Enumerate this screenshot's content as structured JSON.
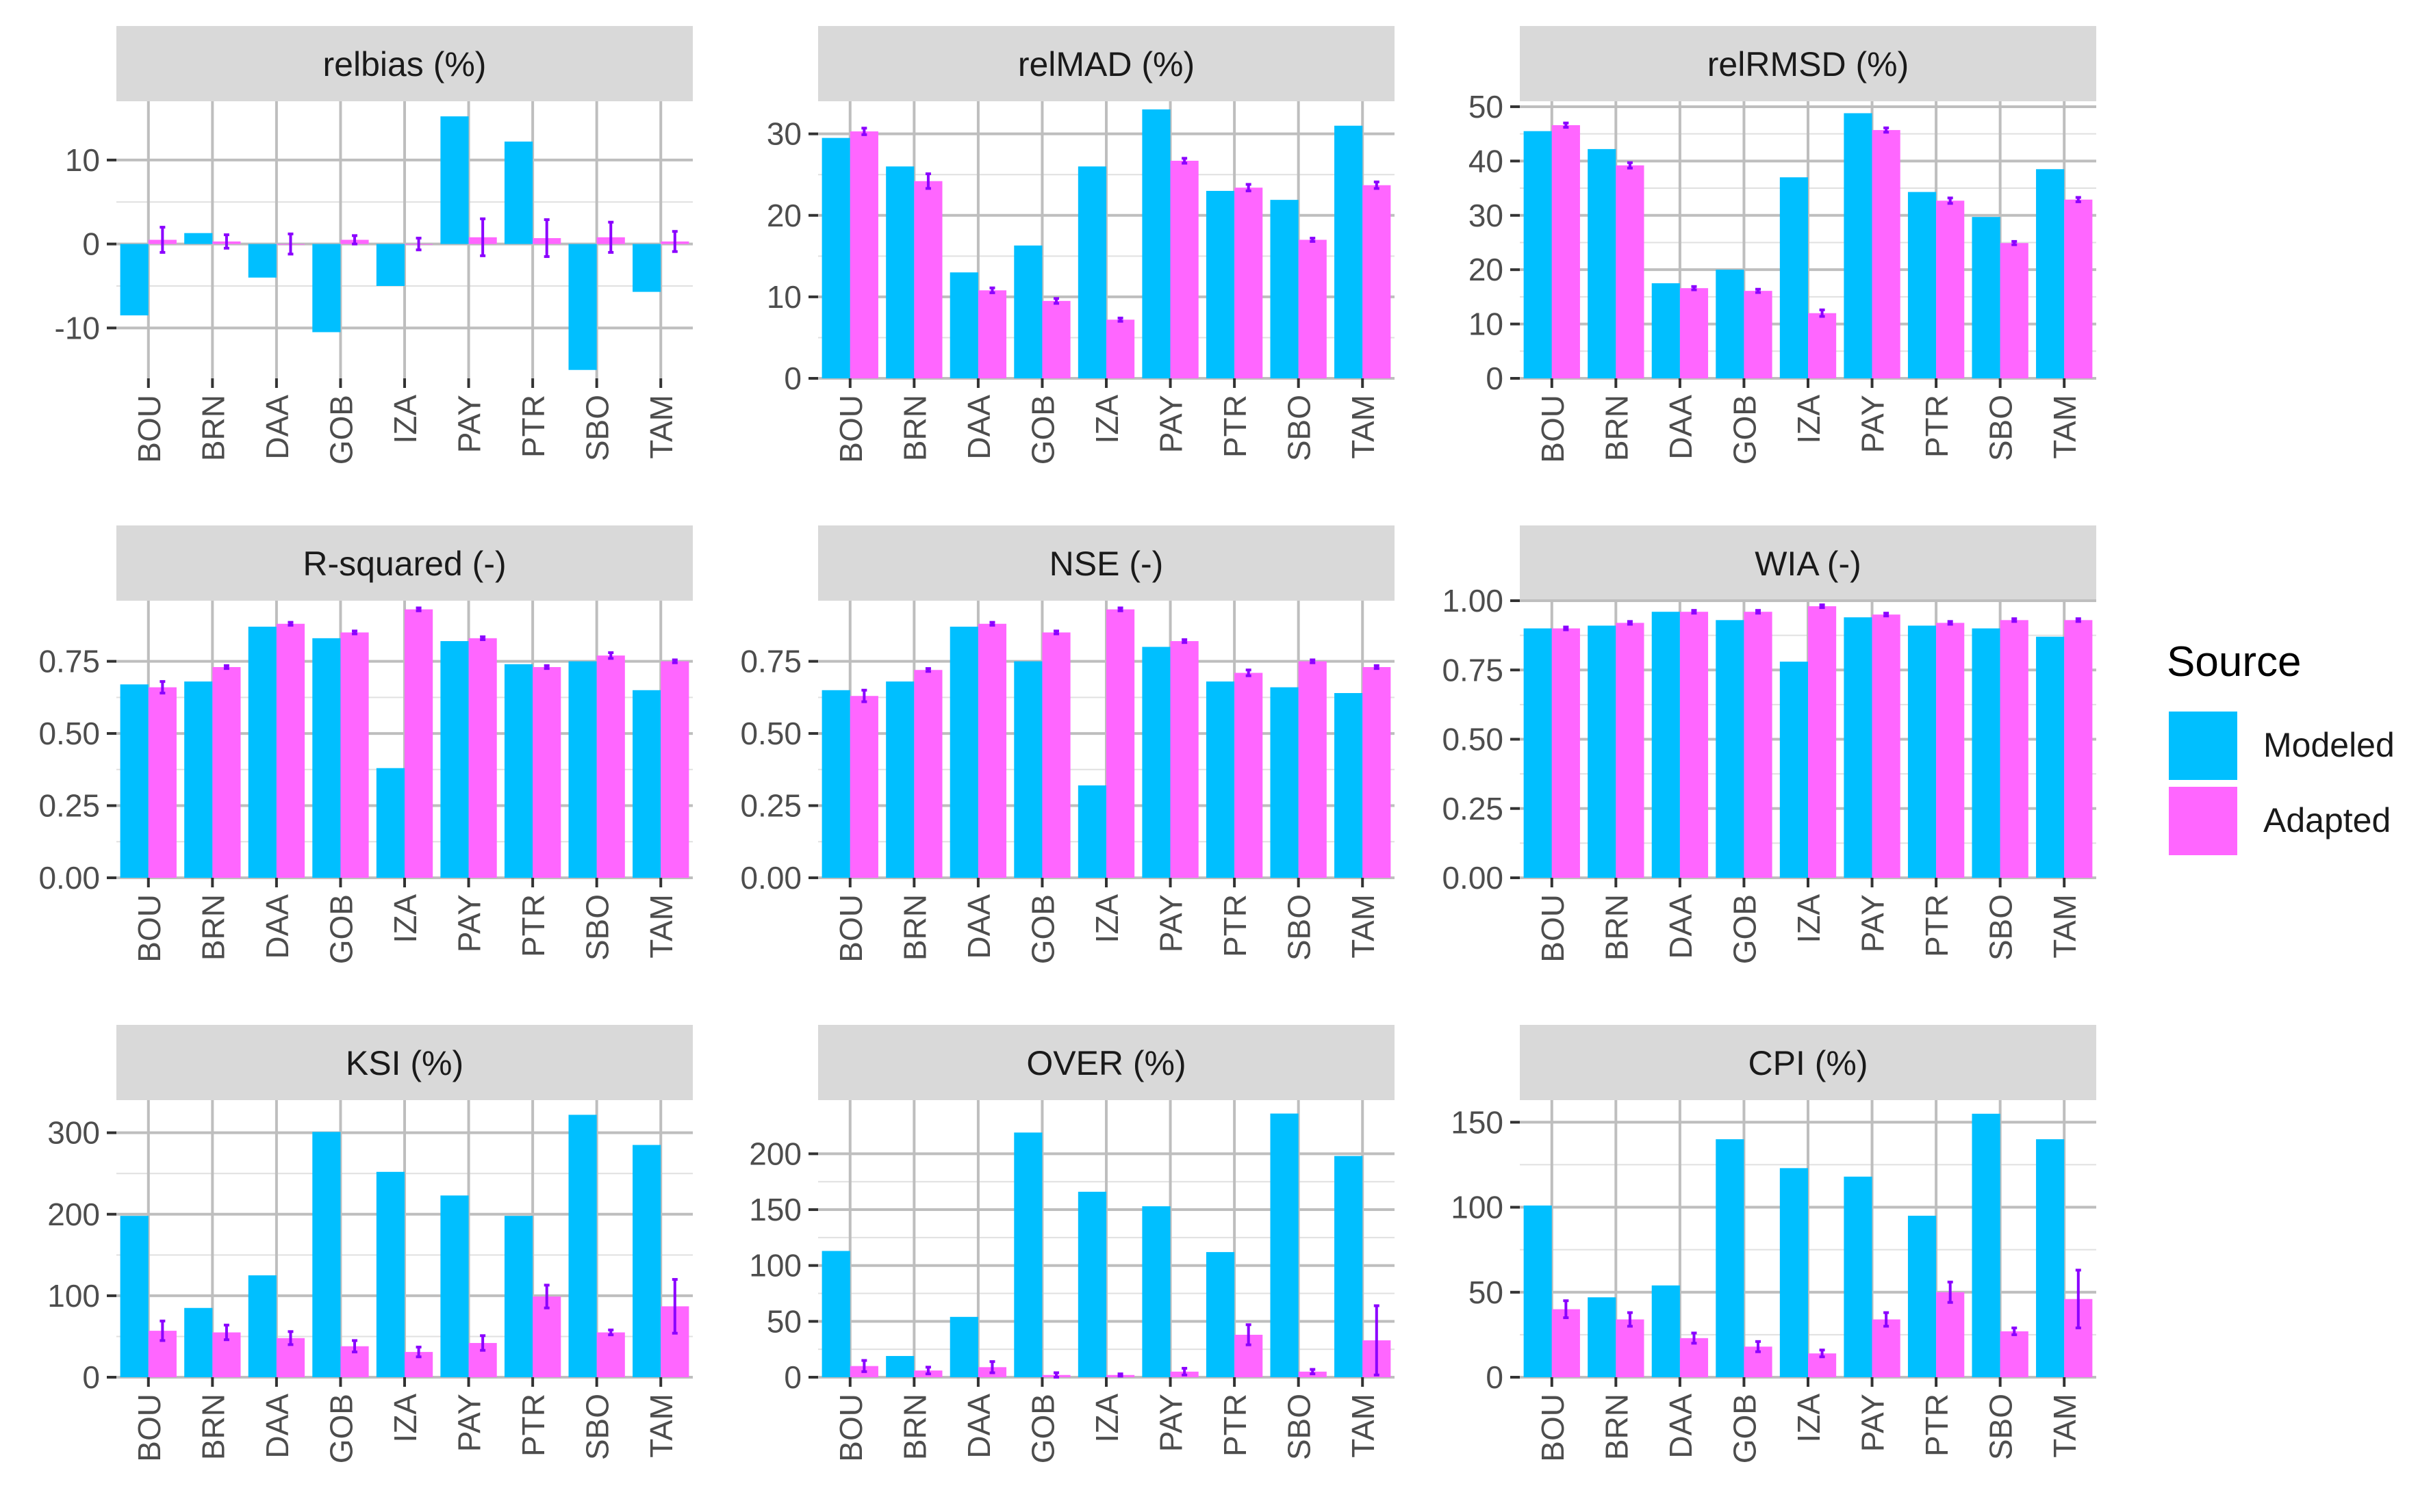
{
  "legend": {
    "title": "Source",
    "items": [
      {
        "label": "Modeled",
        "color": "#00BFFF"
      },
      {
        "label": "Adapted",
        "color": "#FF66FF"
      }
    ]
  },
  "colors": {
    "modeled": "#00BFFF",
    "adapted": "#FF66FF",
    "errorbar": "#8B00FF",
    "strip": "#D9D9D9",
    "grid": "#BEBEBE"
  },
  "chart_data": [
    {
      "type": "bar",
      "title": "relbias (%)",
      "categories": [
        "BOU",
        "BRN",
        "DAA",
        "GOB",
        "IZA",
        "PAY",
        "PTR",
        "SBO",
        "TAM"
      ],
      "ylim": [
        -16,
        17
      ],
      "yticks": [
        -10,
        0,
        10
      ],
      "ytick_labels": [
        "-10",
        "0",
        "10"
      ],
      "series": [
        {
          "name": "Modeled",
          "values": [
            -8.5,
            1.3,
            -4,
            -10.5,
            -5,
            15.2,
            12.2,
            -15,
            -5.7
          ]
        },
        {
          "name": "Adapted",
          "values": [
            0.5,
            0.3,
            0,
            0.5,
            0,
            0.8,
            0.7,
            0.8,
            0.3
          ],
          "err": [
            1.5,
            0.8,
            1.2,
            0.5,
            0.7,
            2.2,
            2.2,
            1.8,
            1.2
          ]
        }
      ]
    },
    {
      "type": "bar",
      "title": "relMAD (%)",
      "categories": [
        "BOU",
        "BRN",
        "DAA",
        "GOB",
        "IZA",
        "PAY",
        "PTR",
        "SBO",
        "TAM"
      ],
      "ylim": [
        0,
        34
      ],
      "yticks": [
        0,
        10,
        20,
        30
      ],
      "ytick_labels": [
        "0",
        "10",
        "20",
        "30"
      ],
      "series": [
        {
          "name": "Modeled",
          "values": [
            29.5,
            26,
            13,
            16.3,
            26,
            33,
            23,
            21.9,
            31
          ]
        },
        {
          "name": "Adapted",
          "values": [
            30.3,
            24.2,
            10.8,
            9.5,
            7.2,
            26.7,
            23.4,
            17,
            23.7
          ],
          "err": [
            0.4,
            0.9,
            0.3,
            0.3,
            0.2,
            0.3,
            0.4,
            0.2,
            0.4
          ]
        }
      ]
    },
    {
      "type": "bar",
      "title": "relRMSD (%)",
      "categories": [
        "BOU",
        "BRN",
        "DAA",
        "GOB",
        "IZA",
        "PAY",
        "PTR",
        "SBO",
        "TAM"
      ],
      "ylim": [
        0,
        51
      ],
      "yticks": [
        0,
        10,
        20,
        30,
        40,
        50
      ],
      "ytick_labels": [
        "0",
        "10",
        "20",
        "30",
        "40",
        "50"
      ],
      "series": [
        {
          "name": "Modeled",
          "values": [
            45.5,
            42.2,
            17.5,
            20,
            37,
            48.8,
            34.3,
            29.7,
            38.5
          ]
        },
        {
          "name": "Adapted",
          "values": [
            46.6,
            39.2,
            16.6,
            16.1,
            12,
            45.7,
            32.7,
            24.9,
            32.9
          ],
          "err": [
            0.4,
            0.5,
            0.3,
            0.3,
            0.6,
            0.4,
            0.5,
            0.3,
            0.4
          ]
        }
      ]
    },
    {
      "type": "bar",
      "title": "R-squared (-)",
      "categories": [
        "BOU",
        "BRN",
        "DAA",
        "GOB",
        "IZA",
        "PAY",
        "PTR",
        "SBO",
        "TAM"
      ],
      "ylim": [
        0,
        0.96
      ],
      "yticks": [
        0,
        0.25,
        0.5,
        0.75
      ],
      "ytick_labels": [
        "0.00",
        "0.25",
        "0.50",
        "0.75"
      ],
      "series": [
        {
          "name": "Modeled",
          "values": [
            0.67,
            0.68,
            0.87,
            0.83,
            0.38,
            0.82,
            0.74,
            0.75,
            0.65
          ]
        },
        {
          "name": "Adapted",
          "values": [
            0.66,
            0.73,
            0.88,
            0.85,
            0.93,
            0.83,
            0.73,
            0.77,
            0.75
          ],
          "err": [
            0.02,
            0.005,
            0.005,
            0.005,
            0.005,
            0.005,
            0.005,
            0.01,
            0.005
          ]
        }
      ]
    },
    {
      "type": "bar",
      "title": "NSE (-)",
      "categories": [
        "BOU",
        "BRN",
        "DAA",
        "GOB",
        "IZA",
        "PAY",
        "PTR",
        "SBO",
        "TAM"
      ],
      "ylim": [
        0,
        0.96
      ],
      "yticks": [
        0,
        0.25,
        0.5,
        0.75
      ],
      "ytick_labels": [
        "0.00",
        "0.25",
        "0.50",
        "0.75"
      ],
      "series": [
        {
          "name": "Modeled",
          "values": [
            0.65,
            0.68,
            0.87,
            0.75,
            0.32,
            0.8,
            0.68,
            0.66,
            0.64
          ]
        },
        {
          "name": "Adapted",
          "values": [
            0.63,
            0.72,
            0.88,
            0.85,
            0.93,
            0.82,
            0.71,
            0.75,
            0.73
          ],
          "err": [
            0.02,
            0.005,
            0.005,
            0.005,
            0.005,
            0.005,
            0.01,
            0.005,
            0.005
          ]
        }
      ]
    },
    {
      "type": "bar",
      "title": "WIA (-)",
      "categories": [
        "BOU",
        "BRN",
        "DAA",
        "GOB",
        "IZA",
        "PAY",
        "PTR",
        "SBO",
        "TAM"
      ],
      "ylim": [
        0,
        1.0
      ],
      "yticks": [
        0,
        0.25,
        0.5,
        0.75,
        1.0
      ],
      "ytick_labels": [
        "0.00",
        "0.25",
        "0.50",
        "0.75",
        "1.00"
      ],
      "series": [
        {
          "name": "Modeled",
          "values": [
            0.9,
            0.91,
            0.96,
            0.93,
            0.78,
            0.94,
            0.91,
            0.9,
            0.87
          ]
        },
        {
          "name": "Adapted",
          "values": [
            0.9,
            0.92,
            0.96,
            0.96,
            0.98,
            0.95,
            0.92,
            0.93,
            0.93
          ],
          "err": [
            0.005,
            0.005,
            0.005,
            0.005,
            0.005,
            0.005,
            0.005,
            0.005,
            0.005
          ]
        }
      ]
    },
    {
      "type": "bar",
      "title": "KSI (%)",
      "categories": [
        "BOU",
        "BRN",
        "DAA",
        "GOB",
        "IZA",
        "PAY",
        "PTR",
        "SBO",
        "TAM"
      ],
      "ylim": [
        0,
        340
      ],
      "yticks": [
        0,
        100,
        200,
        300
      ],
      "ytick_labels": [
        "0",
        "100",
        "200",
        "300"
      ],
      "series": [
        {
          "name": "Modeled",
          "values": [
            198,
            85,
            125,
            301,
            252,
            223,
            198,
            322,
            285
          ]
        },
        {
          "name": "Adapted",
          "values": [
            57,
            55,
            48,
            38,
            31,
            42,
            99,
            55,
            87
          ],
          "err": [
            12,
            9,
            8,
            7,
            6,
            9,
            14,
            3,
            33
          ]
        }
      ]
    },
    {
      "type": "bar",
      "title": "OVER (%)",
      "categories": [
        "BOU",
        "BRN",
        "DAA",
        "GOB",
        "IZA",
        "PAY",
        "PTR",
        "SBO",
        "TAM"
      ],
      "ylim": [
        0,
        248
      ],
      "yticks": [
        0,
        50,
        100,
        150,
        200
      ],
      "ytick_labels": [
        "0",
        "50",
        "100",
        "150",
        "200"
      ],
      "series": [
        {
          "name": "Modeled",
          "values": [
            113,
            19,
            54,
            219,
            166,
            153,
            112,
            236,
            198
          ]
        },
        {
          "name": "Adapted",
          "values": [
            10,
            6,
            9,
            2,
            2,
            5,
            38,
            5,
            33
          ],
          "err": [
            5,
            3,
            5,
            2,
            1,
            3,
            9,
            2,
            31
          ]
        }
      ]
    },
    {
      "type": "bar",
      "title": "CPI (%)",
      "categories": [
        "BOU",
        "BRN",
        "DAA",
        "GOB",
        "IZA",
        "PAY",
        "PTR",
        "SBO",
        "TAM"
      ],
      "ylim": [
        0,
        163
      ],
      "yticks": [
        0,
        50,
        100,
        150
      ],
      "ytick_labels": [
        "0",
        "50",
        "100",
        "150"
      ],
      "series": [
        {
          "name": "Modeled",
          "values": [
            101,
            47,
            54,
            140,
            123,
            118,
            95,
            155,
            140
          ]
        },
        {
          "name": "Adapted",
          "values": [
            40,
            34,
            23,
            18,
            14,
            34,
            50,
            27,
            46
          ],
          "err": [
            5,
            4,
            3,
            3,
            2,
            4,
            6,
            2,
            17
          ]
        }
      ]
    }
  ]
}
